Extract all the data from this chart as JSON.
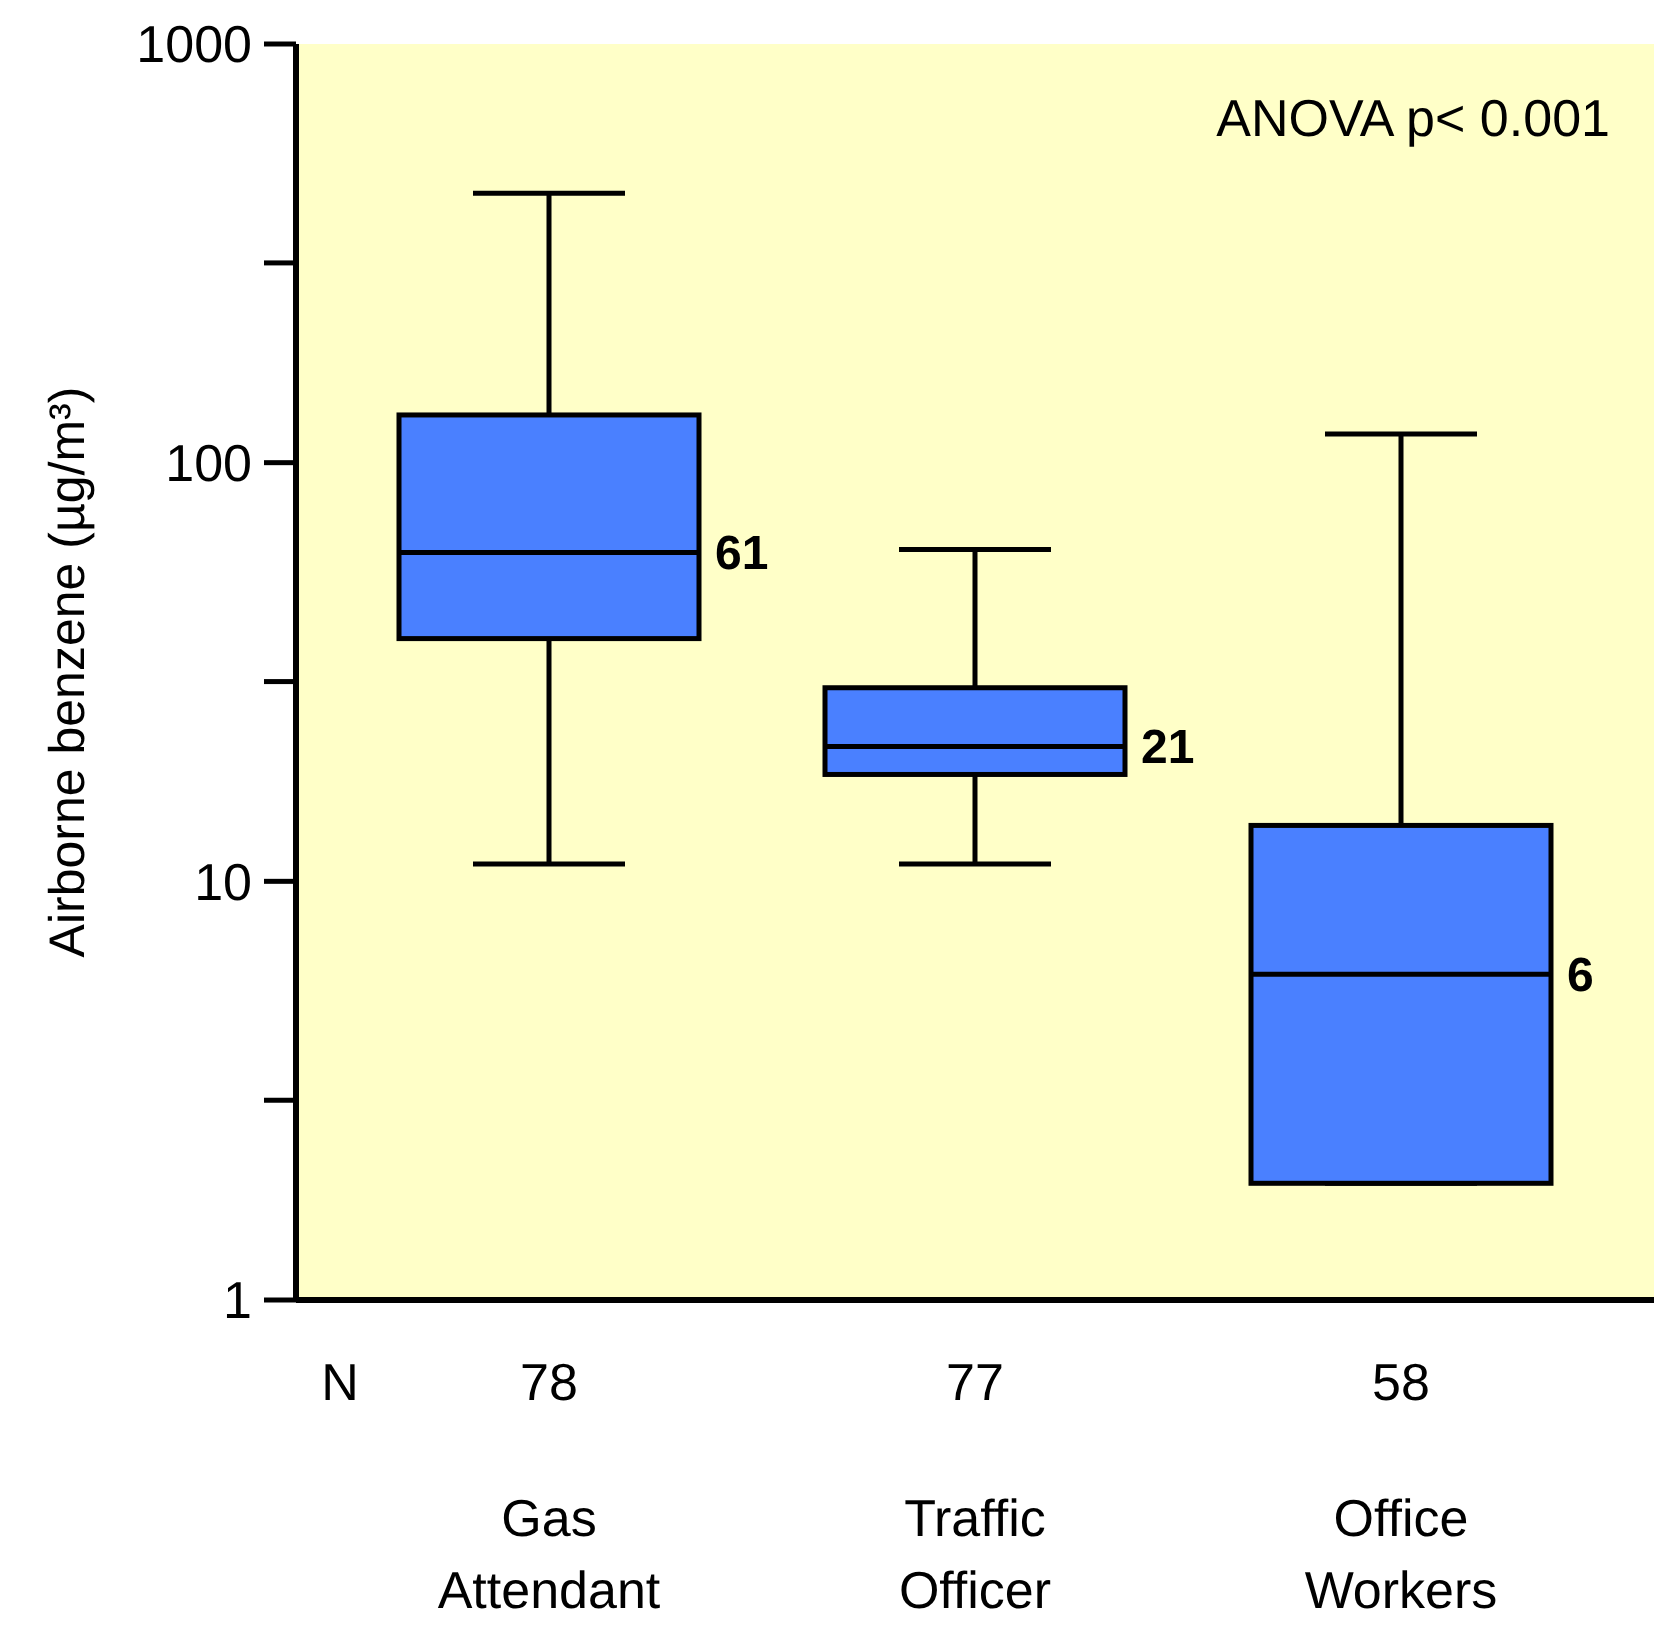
{
  "chart_data": {
    "type": "box",
    "ylabel": "Airborne benzene (µg/m³)",
    "categories": [
      "Gas Attendant",
      "Traffic Officer",
      "Office Workers"
    ],
    "color": "#4a80ff",
    "log": true,
    "ylim": [
      1,
      1000
    ],
    "yticks": [
      1,
      {
        "value": 3,
        "label": null
      },
      10,
      {
        "value": 30,
        "label": null
      },
      100,
      {
        "value": 300,
        "label": null
      },
      1000
    ],
    "boxes": [
      {
        "low": 11,
        "q1": 38,
        "median": 61,
        "q3": 130,
        "high": 440
      },
      {
        "low": 11,
        "q1": 18,
        "median": 21,
        "q3": 29,
        "high": 62
      },
      {
        "low": 1.9,
        "q1": 1.9,
        "median": 6,
        "q3": 13.6,
        "high": 117
      }
    ],
    "annotations": [
      "ANOVA  p< 0.001",
      "N",
      "78",
      "77",
      "58",
      "61",
      "21",
      "6"
    ]
  }
}
